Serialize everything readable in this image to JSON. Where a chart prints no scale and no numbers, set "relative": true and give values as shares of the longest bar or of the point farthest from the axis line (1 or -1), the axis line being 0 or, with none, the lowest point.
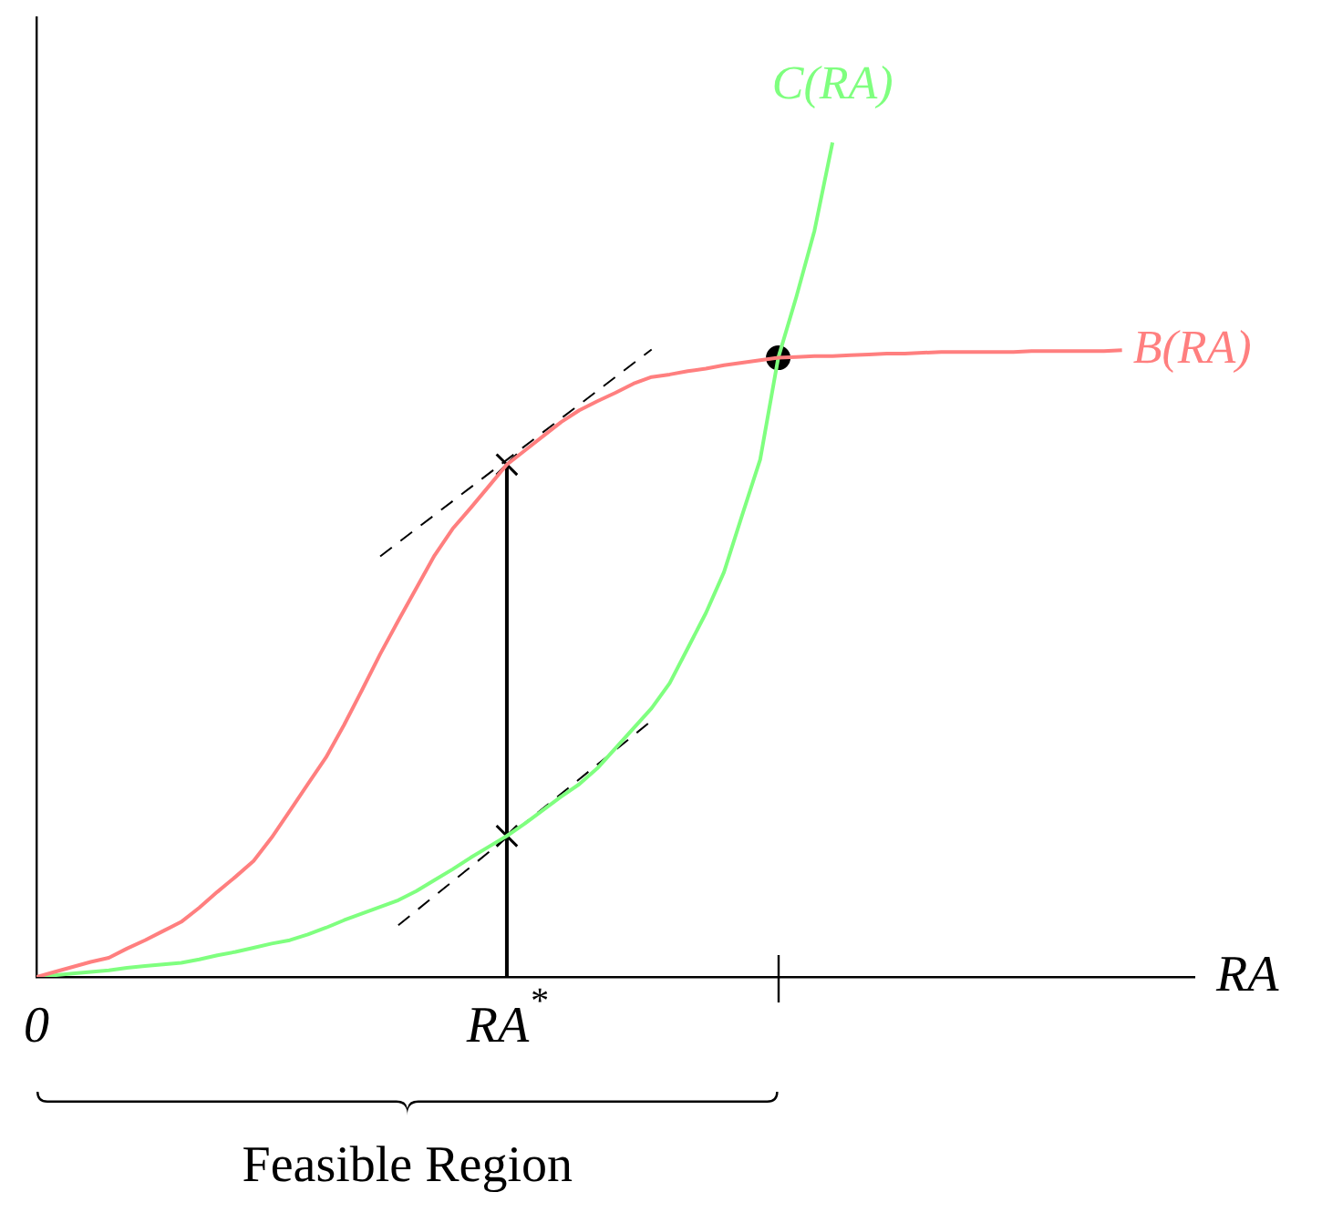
{
  "chart_data": {
    "type": "line",
    "relative": true,
    "xlabel": "RA",
    "grid": false,
    "legend": false,
    "annotations": [
      "Feasible Region"
    ],
    "categories": [
      "0",
      null,
      null,
      null,
      null,
      null,
      null,
      null,
      null,
      null,
      null,
      null,
      null,
      null,
      null,
      null,
      null,
      null,
      null,
      null,
      null,
      null,
      null,
      null,
      null,
      null,
      "RA$^{*}$",
      null,
      null,
      null,
      null,
      null,
      null,
      null,
      null,
      null,
      null,
      null,
      null,
      null,
      null,
      null,
      null,
      null,
      null,
      null,
      null,
      null,
      null,
      null,
      null,
      null,
      null,
      null,
      null,
      null,
      null,
      null,
      null,
      null,
      null,
      null,
      null,
      null,
      null
    ],
    "series": [
      {
        "name": "B(RA)",
        "color": "#ff7f7f",
        "values": [
          0,
          0.006,
          0.012,
          0.018,
          0.023,
          0.034,
          0.044,
          0.055,
          0.066,
          0.083,
          0.102,
          0.12,
          0.139,
          0.167,
          0.199,
          0.231,
          0.263,
          0.302,
          0.344,
          0.387,
          0.427,
          0.466,
          0.505,
          0.537,
          0.562,
          0.588,
          0.614,
          0.631,
          0.648,
          0.665,
          0.679,
          0.69,
          0.7,
          0.711,
          0.719,
          0.722,
          0.726,
          0.729,
          0.733,
          0.736,
          0.739,
          0.742,
          0.743,
          0.744,
          0.744,
          0.745,
          0.746,
          0.747,
          0.747,
          0.748,
          0.749,
          0.749,
          0.749,
          0.749,
          0.749,
          0.75,
          0.75,
          0.75,
          0.75,
          0.75,
          0.751,
          null,
          null,
          null,
          null
        ]
      },
      {
        "name": "C(RA)",
        "color": "#7fff7f",
        "values": [
          0,
          0.002,
          0.004,
          0.006,
          0.008,
          0.011,
          0.013,
          0.015,
          0.017,
          0.021,
          0.026,
          0.03,
          0.035,
          0.04,
          0.044,
          0.051,
          0.059,
          0.068,
          0.076,
          0.084,
          0.092,
          0.103,
          0.116,
          0.129,
          0.143,
          0.156,
          0.169,
          0.184,
          0.2,
          0.216,
          0.231,
          0.25,
          0.274,
          0.298,
          0.322,
          0.352,
          0.394,
          0.436,
          0.485,
          0.553,
          0.62,
          0.742,
          0.815,
          0.894,
          1,
          null,
          null,
          null,
          null,
          null,
          null,
          null,
          null,
          null,
          null,
          null,
          null,
          null,
          null,
          null,
          null,
          null,
          null,
          null,
          null
        ]
      },
      {
        "color": "#000000",
        "line_style": "dashed",
        "values": [
          null,
          null,
          null,
          null,
          null,
          null,
          null,
          null,
          null,
          null,
          null,
          null,
          null,
          null,
          null,
          null,
          null,
          null,
          null,
          0.504,
          null,
          null,
          null,
          null,
          null,
          null,
          null,
          null,
          null,
          null,
          null,
          null,
          null,
          null,
          0.752,
          null,
          null,
          null,
          null,
          null,
          null,
          null,
          null,
          null,
          null,
          null,
          null,
          null,
          null,
          null,
          null,
          null,
          null,
          null,
          null,
          null,
          null,
          null,
          null,
          null,
          null,
          null,
          null,
          null,
          null
        ]
      },
      {
        "color": "#000000",
        "line_style": "dashed",
        "values": [
          null,
          null,
          null,
          null,
          null,
          null,
          null,
          null,
          null,
          null,
          null,
          null,
          null,
          null,
          null,
          null,
          null,
          null,
          null,
          null,
          0.062,
          null,
          null,
          null,
          null,
          null,
          null,
          null,
          null,
          null,
          null,
          null,
          null,
          null,
          0.307,
          null,
          null,
          null,
          null,
          null,
          null,
          null,
          null,
          null,
          null,
          null,
          null,
          null,
          null,
          null,
          null,
          null,
          null,
          null,
          null,
          null,
          null,
          null,
          null,
          null,
          null,
          null,
          null,
          null,
          null
        ]
      },
      {
        "color": "#000000",
        "x": [
          "RA$^{*}$",
          "RA$^{*}$"
        ],
        "values": [
          0,
          0.614
        ]
      },
      {
        "type": "scatter",
        "marker": "cross",
        "color": "#000000",
        "x": [
          "RA$^{*}$",
          "RA$^{*}$"
        ],
        "values": [
          0.614,
          0.169
        ]
      },
      {
        "type": "scatter",
        "marker": "circle",
        "color": "#000000",
        "values": [
          null,
          null,
          null,
          null,
          null,
          null,
          null,
          null,
          null,
          null,
          null,
          null,
          null,
          null,
          null,
          null,
          null,
          null,
          null,
          null,
          null,
          null,
          null,
          null,
          null,
          null,
          null,
          null,
          null,
          null,
          null,
          null,
          null,
          null,
          null,
          null,
          null,
          null,
          null,
          null,
          null,
          0.742,
          null,
          null,
          null,
          null,
          null,
          null,
          null,
          null,
          null,
          null,
          null,
          null,
          null,
          null,
          null,
          null,
          null,
          null,
          null,
          null,
          null,
          null,
          null
        ]
      }
    ]
  }
}
